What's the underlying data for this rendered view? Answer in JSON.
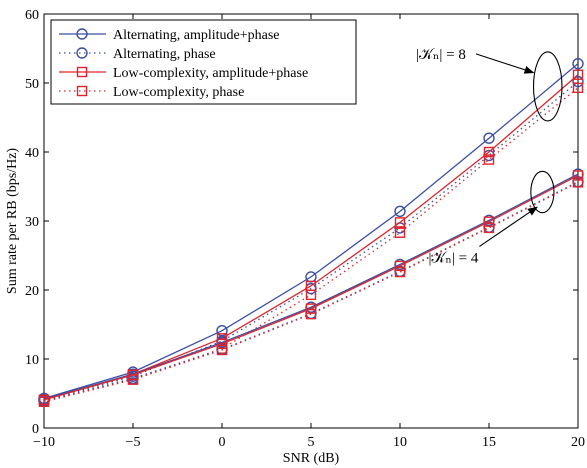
{
  "chart_data": {
    "type": "line",
    "xlabel": "SNR (dB)",
    "ylabel": "Sum rate per RB (bps/Hz)",
    "xlim": [
      -10,
      20
    ],
    "ylim": [
      0,
      60
    ],
    "x_ticks": [
      -10,
      -5,
      0,
      5,
      10,
      15,
      20
    ],
    "y_ticks": [
      0,
      10,
      20,
      30,
      40,
      50,
      60
    ],
    "x_tick_labels": [
      "−10",
      "−5",
      "0",
      "5",
      "10",
      "15",
      "20"
    ],
    "y_tick_labels": [
      "0",
      "10",
      "20",
      "30",
      "40",
      "50",
      "60"
    ],
    "grid": false,
    "legend_position": "top-left",
    "colors": {
      "blue": "#3b4fa3",
      "red": "#e0242c"
    },
    "x": [
      -10,
      -5,
      0,
      5,
      10,
      15,
      20
    ],
    "series": [
      {
        "name": "Alternating, amplitude+phase",
        "group": "K8",
        "color": "#3b4fa3",
        "style": "solid",
        "marker": "circle",
        "values": [
          4.3,
          8.1,
          14.1,
          21.9,
          31.4,
          42.0,
          52.8
        ]
      },
      {
        "name": "Alternating, phase",
        "group": "K8",
        "color": "#3b4fa3",
        "style": "dotted",
        "marker": "circle",
        "values": [
          4.0,
          7.5,
          12.6,
          20.2,
          29.0,
          39.5,
          50.2
        ]
      },
      {
        "name": "Low-complexity, amplitude+phase",
        "group": "K8",
        "color": "#e0242c",
        "style": "solid",
        "marker": "square",
        "values": [
          4.1,
          7.8,
          13.0,
          20.6,
          29.8,
          40.0,
          51.2
        ]
      },
      {
        "name": "Low-complexity, phase",
        "group": "K8",
        "color": "#e0242c",
        "style": "dotted",
        "marker": "square",
        "values": [
          3.9,
          7.1,
          11.5,
          19.3,
          28.3,
          38.9,
          49.3
        ]
      },
      {
        "name": "Alternating, amplitude+phase",
        "group": "K4",
        "color": "#3b4fa3",
        "style": "solid",
        "marker": "circle",
        "values": [
          4.2,
          7.8,
          12.4,
          17.5,
          23.7,
          30.1,
          36.8
        ]
      },
      {
        "name": "Alternating, phase",
        "group": "K4",
        "color": "#3b4fa3",
        "style": "dotted",
        "marker": "circle",
        "values": [
          3.9,
          7.2,
          11.4,
          16.6,
          22.7,
          29.1,
          35.7
        ]
      },
      {
        "name": "Low-complexity, amplitude+phase",
        "group": "K4",
        "color": "#e0242c",
        "style": "solid",
        "marker": "square",
        "values": [
          4.1,
          7.7,
          12.2,
          17.3,
          23.5,
          29.9,
          36.6
        ]
      },
      {
        "name": "Low-complexity, phase",
        "group": "K4",
        "color": "#e0242c",
        "style": "dotted",
        "marker": "square",
        "values": [
          3.8,
          7.0,
          11.3,
          16.5,
          22.6,
          29.0,
          35.6
        ]
      }
    ],
    "legend": [
      {
        "label": "Alternating, amplitude+phase",
        "color": "#3b4fa3",
        "style": "solid",
        "marker": "circle"
      },
      {
        "label": "Alternating, phase",
        "color": "#3b4fa3",
        "style": "dotted",
        "marker": "circle"
      },
      {
        "label": "Low-complexity, amplitude+phase",
        "color": "#e0242c",
        "style": "solid",
        "marker": "square"
      },
      {
        "label": "Low-complexity, phase",
        "color": "#e0242c",
        "style": "dotted",
        "marker": "square"
      }
    ],
    "annotations": [
      {
        "id": "k8",
        "text": "|𝒦ₙ| = 8",
        "ellipse_center": [
          18.3,
          49.5
        ],
        "ellipse_radii": [
          0.8,
          5.0
        ],
        "label_at": [
          12.3,
          53.5
        ],
        "arrow_tip": [
          17.5,
          51.5
        ],
        "label_anchor": "end"
      },
      {
        "id": "k4",
        "text": "|𝒦ₙ| = 4",
        "ellipse_center": [
          18.0,
          34.2
        ],
        "ellipse_radii": [
          0.65,
          3.0
        ],
        "label_at": [
          13.0,
          24.0
        ],
        "arrow_tip": [
          17.7,
          32.0
        ],
        "label_anchor": "start"
      }
    ]
  }
}
